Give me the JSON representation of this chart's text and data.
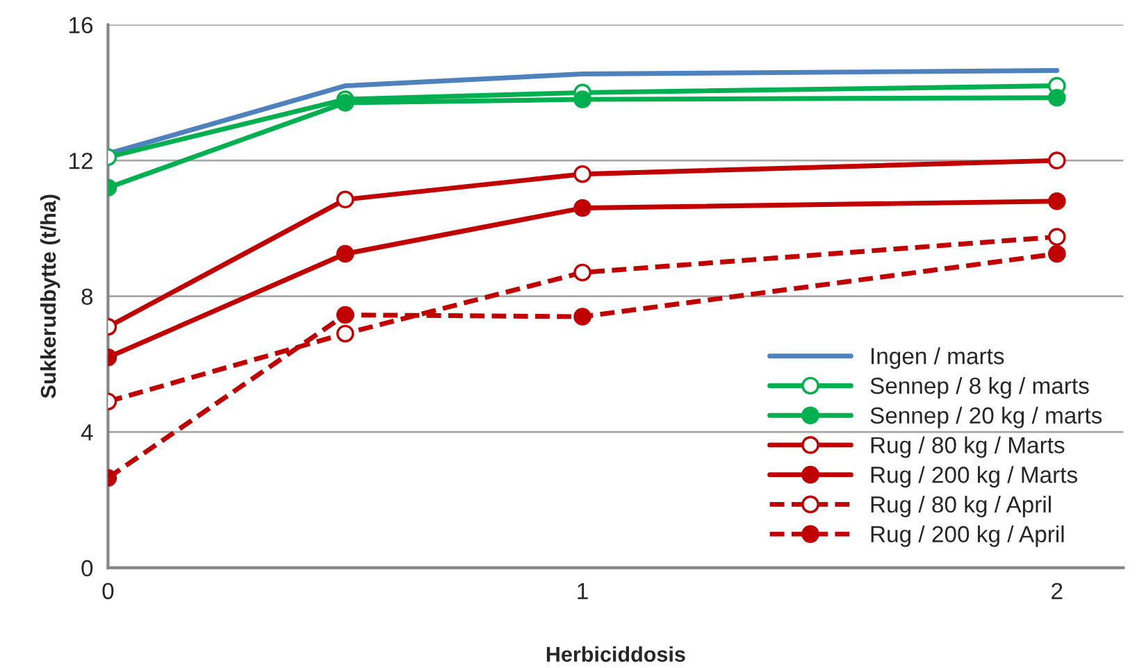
{
  "chart_data": {
    "type": "line",
    "xlabel": "Herbiciddosis",
    "ylabel": "Sukkerudbytte (t/ha)",
    "x": [
      0,
      0.5,
      1,
      2
    ],
    "xlim": [
      0,
      2.14
    ],
    "xticks": [
      0,
      1,
      2
    ],
    "ylim": [
      0,
      16
    ],
    "yticks": [
      0,
      4,
      8,
      12,
      16
    ],
    "grid": "y",
    "legend": "bottom right",
    "series": [
      {
        "name": "Ingen / marts",
        "color": "#4f81bd",
        "marker": "none",
        "line_style": "solid",
        "values": [
          12.2,
          14.2,
          14.55,
          14.65
        ]
      },
      {
        "name": "Sennep / 8 kg / marts",
        "color": "#00b050",
        "marker": "circle",
        "line_style": "solid",
        "values": [
          12.1,
          13.8,
          14.0,
          14.2
        ]
      },
      {
        "name": "Sennep / 20 kg / marts",
        "color": "#00b050",
        "marker": "circle",
        "line_style": "solid",
        "values": [
          11.2,
          13.7,
          13.8,
          13.85
        ]
      },
      {
        "name": "Rug / 80 kg / Marts",
        "color": "#c00000",
        "marker": "circle",
        "line_style": "solid",
        "values": [
          7.1,
          10.85,
          11.6,
          12.0
        ]
      },
      {
        "name": "Rug / 200 kg / Marts",
        "color": "#c00000",
        "marker": "circle",
        "line_style": "solid",
        "values": [
          6.2,
          9.25,
          10.6,
          10.8
        ]
      },
      {
        "name": "Rug / 80 kg / April",
        "color": "#c00000",
        "marker": "circle",
        "line_style": "dashed",
        "values": [
          4.9,
          6.9,
          8.7,
          9.75
        ]
      },
      {
        "name": "Rug / 200 kg / April",
        "color": "#c00000",
        "marker": "circle",
        "line_style": "dashed",
        "values": [
          2.65,
          7.45,
          7.4,
          9.25
        ]
      }
    ]
  }
}
